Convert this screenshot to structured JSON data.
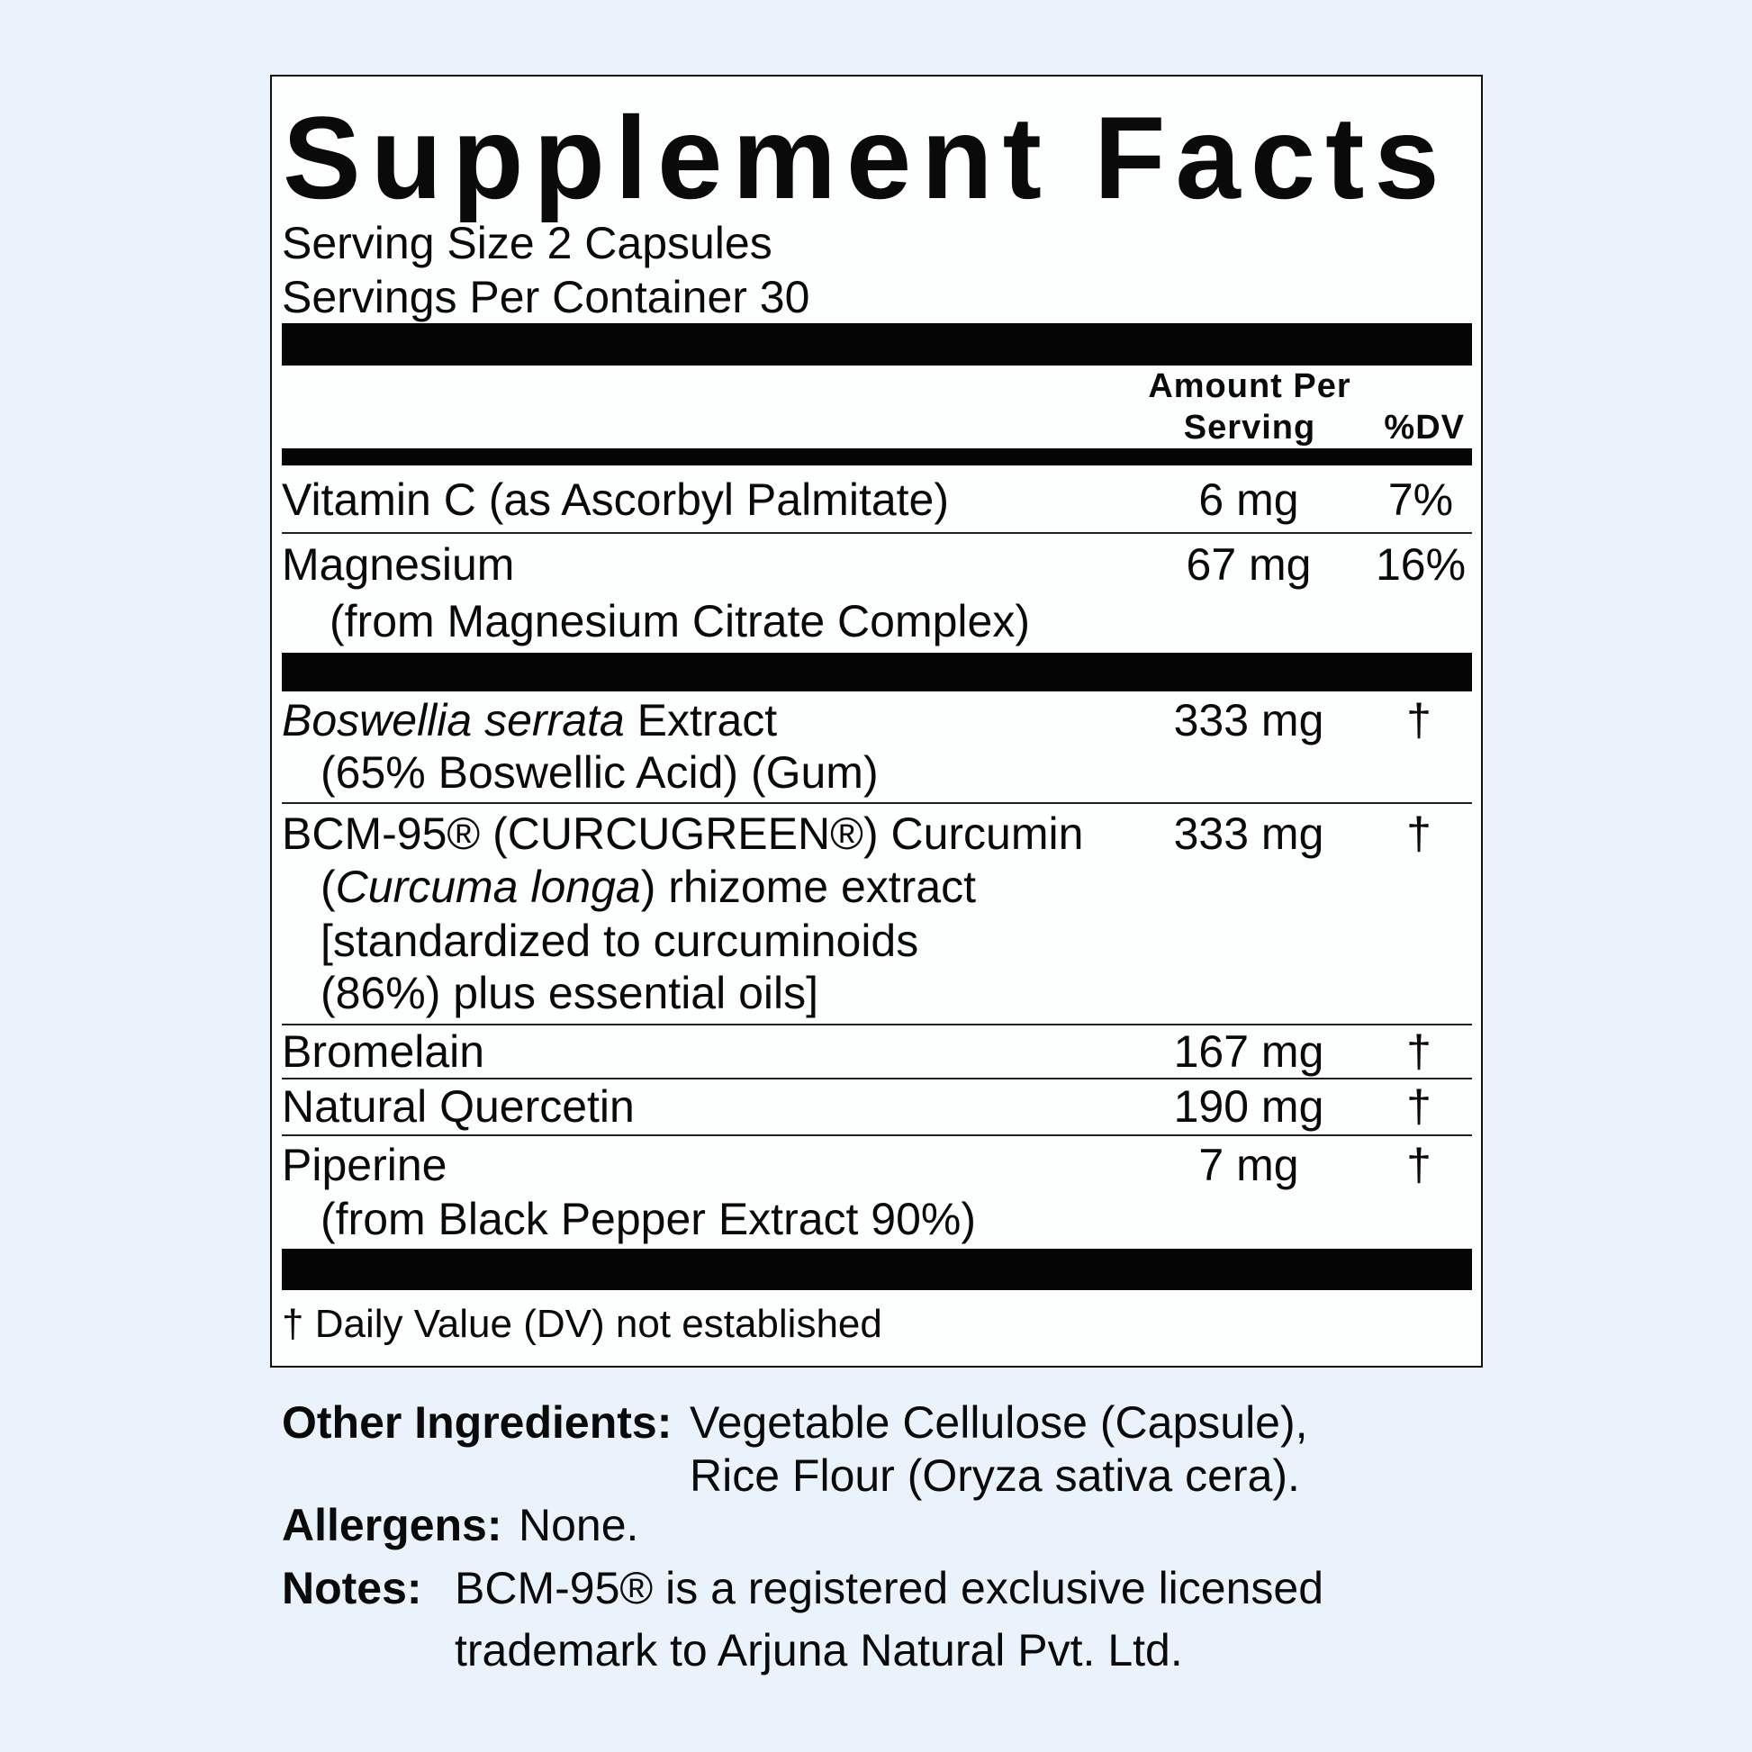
{
  "title": "Supplement Facts",
  "serving_size": "Serving Size 2 Capsules",
  "servings_per_container": "Servings Per Container 30",
  "header": {
    "amount_line1": "Amount Per",
    "amount_line2": "Serving",
    "dv": "%DV"
  },
  "rows": [
    {
      "name": "Vitamin C (as Ascorbyl Palmitate)",
      "amount": "6 mg",
      "dv": "7%"
    },
    {
      "name": "Magnesium",
      "sub": "(from Magnesium Citrate Complex)",
      "amount": "67 mg",
      "dv": "16%"
    },
    {
      "name_italic": "Boswellia serrata",
      "name_rest": " Extract",
      "sub": "(65% Boswellic Acid) (Gum)",
      "amount": "333 mg",
      "dv": "†"
    },
    {
      "name": "BCM-95® (CURCUGREEN®) Curcumin",
      "sub_open": "(",
      "sub_italic": "Curcuma longa",
      "sub_rest": ") rhizome extract",
      "sub2": "[standardized to curcuminoids",
      "sub3": "(86%) plus essential oils]",
      "amount": "333 mg",
      "dv": "†"
    },
    {
      "name": "Bromelain",
      "amount": "167 mg",
      "dv": "†"
    },
    {
      "name": "Natural Quercetin",
      "amount": "190 mg",
      "dv": "†"
    },
    {
      "name": "Piperine",
      "sub": "(from Black Pepper Extract 90%)",
      "amount": "7 mg",
      "dv": "†"
    }
  ],
  "footnote": "† Daily Value (DV) not established",
  "other_ingredients": {
    "label": "Other Ingredients:",
    "line1": "Vegetable Cellulose (Capsule),",
    "line2": "Rice Flour (Oryza sativa cera)."
  },
  "allergens": {
    "label": "Allergens:",
    "value": "None."
  },
  "notes": {
    "label": "Notes:",
    "line1": "BCM-95® is a registered exclusive licensed",
    "line2": "trademark to Arjuna Natural Pvt. Ltd."
  },
  "colors": {
    "background": "#eaf3fb",
    "label": "#fdfefe",
    "ink": "#0a0a0a"
  }
}
